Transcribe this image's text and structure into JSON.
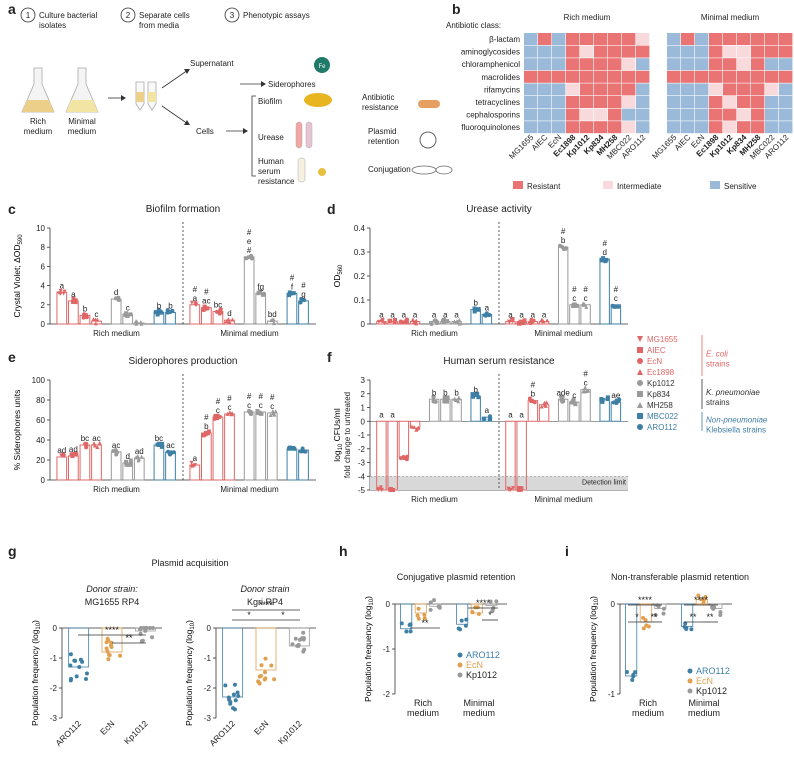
{
  "colors": {
    "ecoli": "#e06666",
    "ecoli_dark": "#c0392b",
    "kpn": "#9a9a9a",
    "kpn_dark": "#555555",
    "nonkpn": "#3f7fa6",
    "resistant": "#ea7373",
    "intermediate": "#f8d9dc",
    "sensitive": "#9bb9d8",
    "aro": "#3f7fa6",
    "ecn": "#e0a050",
    "kp": "#9a9a9a"
  },
  "panel_letters": [
    "a",
    "b",
    "c",
    "d",
    "e",
    "f",
    "g",
    "h",
    "i"
  ],
  "panel_a": {
    "steps": [
      {
        "num": "1",
        "text": [
          "Culture bacterial",
          "isolates"
        ]
      },
      {
        "num": "2",
        "text": [
          "Separate cells",
          "from media"
        ]
      },
      {
        "num": "3",
        "text": [
          "Phenotypic assays"
        ]
      }
    ],
    "flask_labels": [
      [
        "Rich",
        "medium"
      ],
      [
        "Minimal",
        "medium"
      ]
    ],
    "supernatant": "Supernatant",
    "siderophores": "Siderophores",
    "cells": "Cells",
    "assays_left": [
      "Biofilm",
      "Urease",
      "Human",
      "serum",
      "resistance"
    ],
    "assays_right": [
      [
        "Antibiotic",
        "resistance"
      ],
      [
        "Plasmid",
        "retention"
      ],
      [
        "Conjugation"
      ]
    ],
    "fe_label": "Fe"
  },
  "chart_data": [
    {
      "panel": "b",
      "type": "heatmap",
      "title": "",
      "row_header": "Antibiotic class:",
      "groups": [
        "Rich medium",
        "Minimal medium"
      ],
      "rows": [
        "β-lactam",
        "aminoglycosides",
        "chloramphenicol",
        "macrolides",
        "rifamycins",
        "tetracyclines",
        "cephalosporins",
        "fluoroquinolones"
      ],
      "columns": [
        "MG1655",
        "AIEC",
        "EcN",
        "Ec1898",
        "Kp1012",
        "Kp834",
        "MH258",
        "MBC022",
        "ARO112"
      ],
      "bold_columns": [
        "Ec1898",
        "Kp1012",
        "Kp834",
        "MH258"
      ],
      "legend": [
        "Resistant",
        "Intermediate",
        "Sensitive"
      ],
      "encoding": "R = Resistant, I = Intermediate, S = Sensitive",
      "values_rich": [
        [
          "S",
          "R",
          "S",
          "R",
          "R",
          "R",
          "R",
          "R",
          "I"
        ],
        [
          "S",
          "S",
          "S",
          "R",
          "I",
          "R",
          "R",
          "R",
          "R"
        ],
        [
          "S",
          "S",
          "S",
          "R",
          "R",
          "R",
          "R",
          "I",
          "S"
        ],
        [
          "R",
          "R",
          "R",
          "R",
          "R",
          "R",
          "R",
          "R",
          "R"
        ],
        [
          "S",
          "S",
          "S",
          "I",
          "R",
          "R",
          "R",
          "R",
          "S"
        ],
        [
          "S",
          "S",
          "S",
          "R",
          "R",
          "R",
          "R",
          "I",
          "S"
        ],
        [
          "S",
          "S",
          "S",
          "R",
          "I",
          "I",
          "R",
          "S",
          "S"
        ],
        [
          "S",
          "S",
          "S",
          "R",
          "R",
          "R",
          "R",
          "I",
          "S"
        ]
      ],
      "values_minimal": [
        [
          "S",
          "R",
          "S",
          "R",
          "R",
          "R",
          "R",
          "R",
          "R"
        ],
        [
          "S",
          "S",
          "S",
          "R",
          "I",
          "I",
          "R",
          "R",
          "R"
        ],
        [
          "S",
          "S",
          "S",
          "R",
          "R",
          "I",
          "R",
          "S",
          "S"
        ],
        [
          "R",
          "R",
          "R",
          "R",
          "R",
          "R",
          "R",
          "R",
          "R"
        ],
        [
          "S",
          "S",
          "S",
          "I",
          "R",
          "R",
          "R",
          "I",
          "S"
        ],
        [
          "S",
          "S",
          "S",
          "R",
          "I",
          "R",
          "R",
          "S",
          "S"
        ],
        [
          "S",
          "S",
          "S",
          "R",
          "R",
          "I",
          "R",
          "S",
          "S"
        ],
        [
          "S",
          "S",
          "S",
          "R",
          "I",
          "R",
          "R",
          "S",
          "S"
        ]
      ]
    },
    {
      "panel": "c",
      "type": "bar",
      "title": "Biofilm formation",
      "ylabel": "Crystal Violet; ΔOD",
      "ylabel_sub": "590",
      "ylim": [
        0,
        10
      ],
      "yticks": [
        0,
        2,
        4,
        6,
        8,
        10
      ],
      "categories": [
        "MG1655",
        "AIEC",
        "EcN",
        "Ec1898",
        "Kp1012",
        "Kp834",
        "MH258",
        "MBC022",
        "ARO112"
      ],
      "groups": [
        "Rich medium",
        "Minimal medium"
      ],
      "series": [
        {
          "name": "Rich medium",
          "values": [
            3.3,
            2.4,
            0.9,
            0.3,
            2.6,
            1.0,
            0.1,
            1.2,
            1.2
          ],
          "labels": [
            "a",
            "a",
            "b",
            "c",
            "d",
            "c",
            "",
            "b",
            "b"
          ]
        },
        {
          "name": "Minimal medium",
          "values": [
            2.0,
            1.7,
            1.3,
            0.4,
            7.0,
            3.2,
            0.3,
            3.2,
            2.4
          ],
          "labels": [
            "#\na",
            "#\nac",
            "bc",
            "d",
            "#\ne\n#",
            "fg",
            "bd",
            "#\nf",
            "#\ng"
          ]
        }
      ]
    },
    {
      "panel": "d",
      "type": "bar",
      "title": "Urease activity",
      "ylabel": "OD",
      "ylabel_sub": "560",
      "ylim": [
        0,
        0.4
      ],
      "yticks": [
        0.0,
        0.1,
        0.2,
        0.3,
        0.4
      ],
      "categories": [
        "MG1655",
        "AIEC",
        "EcN",
        "Ec1898",
        "Kp1012",
        "Kp834",
        "MH258",
        "MBC022",
        "ARO112"
      ],
      "groups": [
        "Rich medium",
        "Minimal medium"
      ],
      "series": [
        {
          "name": "Rich medium",
          "values": [
            0.01,
            0.01,
            0.01,
            0.01,
            0.01,
            0.01,
            0.01,
            0.06,
            0.04
          ],
          "labels": [
            "a",
            "a",
            "a",
            "a",
            "a",
            "a",
            "a",
            "b",
            "a"
          ]
        },
        {
          "name": "Minimal medium",
          "values": [
            0.01,
            0.01,
            0.01,
            0.01,
            0.32,
            0.08,
            0.08,
            0.27,
            0.08
          ],
          "labels": [
            "a",
            "a",
            "a",
            "a",
            "#\nb",
            "#\nc",
            "#\nc",
            "#\nd",
            "#\nc"
          ]
        }
      ]
    },
    {
      "panel": "e",
      "type": "bar",
      "title": "Siderophores production",
      "ylabel": "% Siderophores units",
      "ylim": [
        0,
        100
      ],
      "yticks": [
        0,
        20,
        40,
        60,
        80,
        100
      ],
      "categories": [
        "MG1655",
        "AIEC",
        "EcN",
        "Ec1898",
        "Kp1012",
        "Kp834",
        "MH258",
        "MBC022",
        "ARO112"
      ],
      "groups": [
        "Rich medium",
        "Minimal medium"
      ],
      "series": [
        {
          "name": "Rich medium",
          "values": [
            23,
            24,
            35,
            35,
            28,
            17,
            22,
            35,
            28
          ],
          "labels": [
            "ad",
            "ad",
            "bc",
            "ac",
            "ac",
            "d",
            "ad",
            "bc",
            "ac"
          ]
        },
        {
          "name": "Minimal medium",
          "values": [
            15,
            47,
            63,
            66,
            68,
            68,
            67,
            31,
            30
          ],
          "labels": [
            "a",
            "#\nb",
            "#\nc",
            "#\nc",
            "#\nc",
            "#\nc",
            "#\nc",
            "",
            ""
          ]
        }
      ]
    },
    {
      "panel": "f",
      "type": "bar",
      "title": "Human serum resistance",
      "ylabel": "log",
      "ylabel_sub": "10",
      "ylabel_rest": " CFUs/ml",
      "ylabel2": "fold change to untreated",
      "ylim": [
        -5,
        3
      ],
      "yticks": [
        -5,
        -4,
        -3,
        -2,
        -1,
        0,
        1,
        2,
        3
      ],
      "detection_limit": -4,
      "detection_label": "Detection limit",
      "categories": [
        "MG1655",
        "AIEC",
        "EcN",
        "Ec1898",
        "Kp1012",
        "Kp834",
        "MH258",
        "MBC022",
        "ARO112"
      ],
      "groups": [
        "Rich medium",
        "Minimal medium"
      ],
      "series": [
        {
          "name": "Rich medium",
          "values": [
            -5,
            -5,
            -2.6,
            -0.5,
            1.6,
            1.6,
            1.6,
            1.8,
            0.3
          ],
          "labels": [
            "a",
            "a",
            "",
            "",
            "b",
            "b",
            "b",
            "b",
            "a"
          ]
        },
        {
          "name": "Minimal medium",
          "values": [
            -5,
            -5,
            1.5,
            1.2,
            1.6,
            1.4,
            2.3,
            1.6,
            1.4
          ],
          "labels": [
            "a",
            "a",
            "#\nb",
            "",
            "ade",
            "c",
            "#\nc",
            "",
            "ae"
          ]
        }
      ]
    },
    {
      "panel": "g1",
      "type": "scatter",
      "title": "Donor strain:",
      "subtitle": "MG1655 RP4",
      "ylabel": "Population frequency (log",
      "ylabel_sub": "10",
      "ylim": [
        -3,
        0
      ],
      "yticks": [
        -3,
        -2,
        -1,
        0
      ],
      "categories": [
        "ARO112",
        "EcN",
        "Kp1012"
      ],
      "values": [
        -1.3,
        -0.8,
        -0.1
      ],
      "significance": [
        "****",
        "**"
      ]
    },
    {
      "panel": "g2",
      "type": "scatter",
      "title": "Donor strain",
      "subtitle": "Kgri RP4",
      "ylabel": "Population frequency (log",
      "ylabel_sub": "10",
      "ylim": [
        -3,
        0
      ],
      "yticks": [
        -3,
        -2,
        -1,
        0
      ],
      "categories": [
        "ARO112",
        "EcN",
        "Kp1012"
      ],
      "values": [
        -2.3,
        -1.4,
        -0.6
      ],
      "significance": [
        "****",
        "*",
        "*"
      ]
    },
    {
      "panel": "h",
      "type": "scatter",
      "title": "Conjugative plasmid retention",
      "ylabel": "Population frequency (log",
      "ylabel_sub": "10",
      "ylim": [
        -2,
        0
      ],
      "yticks": [
        -2,
        -1,
        0
      ],
      "categories": [
        "Rich medium",
        "Minimal medium"
      ],
      "series": [
        {
          "name": "ARO112",
          "values": [
            -0.55,
            -0.45
          ]
        },
        {
          "name": "EcN",
          "values": [
            -0.2,
            -0.2
          ]
        },
        {
          "name": "Kp1012",
          "values": [
            -0.05,
            -0.03
          ]
        }
      ],
      "significance": [
        "**",
        "****",
        "*"
      ]
    },
    {
      "panel": "i",
      "type": "scatter",
      "title": "Non-transferable plasmid retention",
      "ylabel": "Population frequency (log",
      "ylabel_sub": "10",
      "ylim": [
        -1,
        0
      ],
      "yticks": [
        -1,
        0
      ],
      "categories": [
        "Rich medium",
        "Minimal medium"
      ],
      "series": [
        {
          "name": "ARO112",
          "values": [
            -0.8,
            -0.25
          ]
        },
        {
          "name": "EcN",
          "values": [
            -0.2,
            0.05
          ]
        },
        {
          "name": "Kp1012",
          "values": [
            -0.05,
            -0.05
          ]
        }
      ],
      "significance": [
        "****",
        "*",
        "**",
        "****",
        "**",
        "**"
      ]
    }
  ],
  "legend_strains": {
    "items": [
      "MG1655",
      "AIEC",
      "EcN",
      "Ec1898",
      "Kp1012",
      "Kp834",
      "MH258",
      "MBC022",
      "ARO112"
    ],
    "groups": [
      [
        "E. coli",
        "strains"
      ],
      [
        "K. pneumoniae",
        "strains"
      ],
      [
        "Non-pneumoniae",
        "Klebsiella strains"
      ]
    ]
  },
  "g_title": "Plasmid acquisition"
}
